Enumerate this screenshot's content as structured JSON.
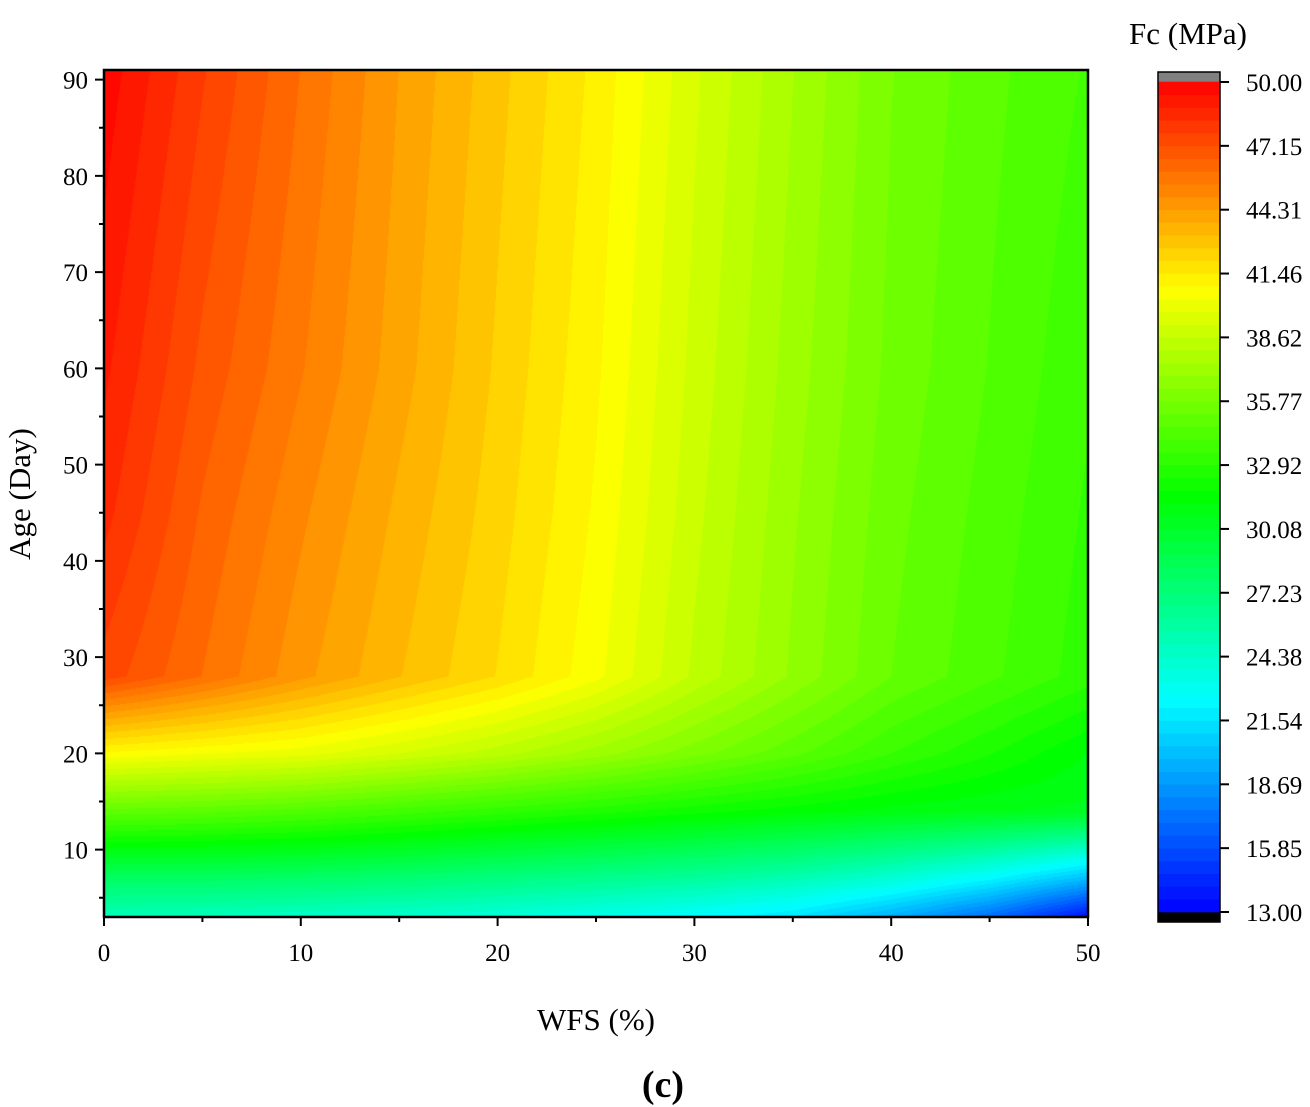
{
  "chart_data": {
    "type": "heatmap",
    "subtype": "filled-contour",
    "xlabel": "WFS (%)",
    "ylabel": "Age (Day)",
    "colorbar_title": "Fc (MPa)",
    "panel_label": "(c)",
    "xlim": [
      0,
      50
    ],
    "ylim": [
      3,
      91
    ],
    "xticks": [
      0,
      10,
      20,
      30,
      40,
      50
    ],
    "yticks": [
      10,
      20,
      30,
      40,
      50,
      60,
      70,
      80,
      90
    ],
    "colorbar_range": [
      13.0,
      50.0
    ],
    "colorbar_ticks": [
      "13.00",
      "15.85",
      "18.69",
      "21.54",
      "24.38",
      "27.23",
      "30.08",
      "32.92",
      "35.77",
      "38.62",
      "41.46",
      "44.31",
      "47.15",
      "50.00"
    ],
    "colorbar_levels": 65,
    "colormap": [
      [
        0.0,
        "#0000ff"
      ],
      [
        0.257,
        "#00ffff"
      ],
      [
        0.5,
        "#00ff00"
      ],
      [
        0.75,
        "#ffff00"
      ],
      [
        1.0,
        "#ff0000"
      ]
    ],
    "over_color": "#808080",
    "under_color": "#000000",
    "grid": {
      "x": [
        0,
        5,
        10,
        15,
        20,
        25,
        30,
        35,
        40,
        45,
        50
      ],
      "y": [
        3,
        7,
        14,
        20,
        28,
        45,
        60,
        91
      ],
      "fc": [
        [
          25.0,
          24.8,
          24.5,
          24.2,
          23.8,
          23.2,
          22.5,
          21.5,
          19.5,
          17.0,
          13.5
        ],
        [
          28.0,
          28.0,
          27.8,
          27.5,
          27.0,
          26.5,
          26.0,
          25.2,
          24.0,
          22.3,
          20.0
        ],
        [
          35.0,
          34.8,
          34.4,
          33.8,
          33.2,
          32.6,
          32.0,
          31.5,
          31.0,
          30.7,
          30.5
        ],
        [
          40.8,
          40.4,
          40.0,
          39.2,
          38.3,
          37.2,
          36.0,
          34.8,
          33.5,
          32.4,
          31.2
        ],
        [
          47.5,
          46.0,
          44.5,
          43.2,
          42.0,
          40.5,
          38.5,
          36.8,
          35.2,
          34.2,
          33.2
        ],
        [
          48.5,
          46.5,
          45.0,
          43.6,
          42.3,
          40.8,
          38.8,
          37.0,
          35.4,
          34.4,
          33.4
        ],
        [
          49.0,
          47.0,
          45.5,
          44.0,
          42.5,
          41.0,
          39.0,
          37.2,
          35.6,
          34.6,
          33.6
        ],
        [
          49.8,
          47.8,
          46.0,
          44.3,
          42.8,
          41.3,
          39.3,
          37.5,
          35.8,
          34.8,
          34.0
        ]
      ]
    }
  }
}
